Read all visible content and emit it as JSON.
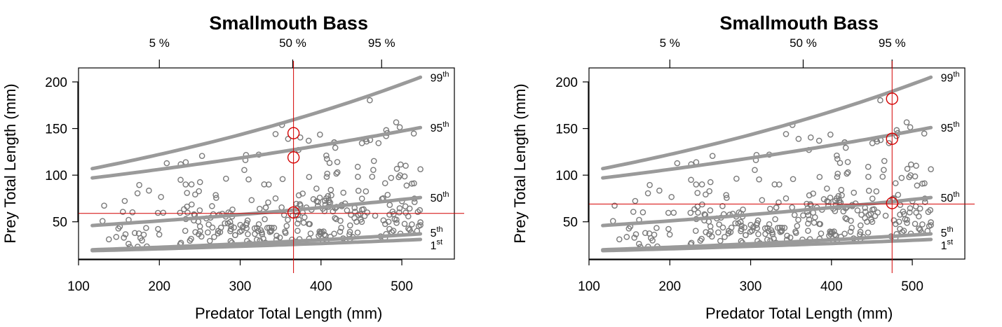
{
  "chart_data": [
    {
      "type": "scatter",
      "title": "Smallmouth Bass",
      "xlabel": "Predator Total Length (mm)",
      "ylabel": "Prey Total Length (mm)",
      "xlim": [
        100,
        565
      ],
      "ylim": [
        10,
        215
      ],
      "xticks": [
        100,
        200,
        300,
        400,
        500
      ],
      "yticks": [
        50,
        100,
        150,
        200
      ],
      "percentile_ticks": [
        {
          "label": "5 %",
          "x": 200
        },
        {
          "label": "50 %",
          "x": 365
        },
        {
          "label": "95 %",
          "x": 475
        }
      ],
      "curves": [
        {
          "name": "99th",
          "num": "99",
          "sup": "th",
          "x_start": 117,
          "y_start": 107,
          "x_end": 523,
          "y_end": 205
        },
        {
          "name": "95th",
          "num": "95",
          "sup": "th",
          "x_start": 117,
          "y_start": 97,
          "x_end": 523,
          "y_end": 151
        },
        {
          "name": "50th",
          "num": "50",
          "sup": "th",
          "x_start": 117,
          "y_start": 46,
          "x_end": 523,
          "y_end": 76
        },
        {
          "name": "5th",
          "num": "5",
          "sup": "th",
          "x_start": 117,
          "y_start": 20,
          "x_end": 523,
          "y_end": 37
        },
        {
          "name": "1st",
          "num": "1",
          "sup": "st",
          "x_start": 117,
          "y_start": 19,
          "x_end": 523,
          "y_end": 31
        }
      ],
      "crosshair": {
        "x": 366,
        "y": 59
      },
      "markers": [
        {
          "x": 366,
          "y": 145
        },
        {
          "x": 366,
          "y": 119
        },
        {
          "x": 366,
          "y": 60
        }
      ],
      "points_seed": 7
    },
    {
      "type": "scatter",
      "title": "Smallmouth Bass",
      "xlabel": "Predator Total Length (mm)",
      "ylabel": "Prey Total Length (mm)",
      "xlim": [
        100,
        565
      ],
      "ylim": [
        10,
        215
      ],
      "xticks": [
        100,
        200,
        300,
        400,
        500
      ],
      "yticks": [
        50,
        100,
        150,
        200
      ],
      "percentile_ticks": [
        {
          "label": "5 %",
          "x": 200
        },
        {
          "label": "50 %",
          "x": 365
        },
        {
          "label": "95 %",
          "x": 475
        }
      ],
      "curves": [
        {
          "name": "99th",
          "num": "99",
          "sup": "th",
          "x_start": 117,
          "y_start": 107,
          "x_end": 523,
          "y_end": 205
        },
        {
          "name": "95th",
          "num": "95",
          "sup": "th",
          "x_start": 117,
          "y_start": 97,
          "x_end": 523,
          "y_end": 151
        },
        {
          "name": "50th",
          "num": "50",
          "sup": "th",
          "x_start": 117,
          "y_start": 46,
          "x_end": 523,
          "y_end": 76
        },
        {
          "name": "5th",
          "num": "5",
          "sup": "th",
          "x_start": 117,
          "y_start": 20,
          "x_end": 523,
          "y_end": 37
        },
        {
          "name": "1st",
          "num": "1",
          "sup": "st",
          "x_start": 117,
          "y_start": 19,
          "x_end": 523,
          "y_end": 31
        }
      ],
      "crosshair": {
        "x": 475,
        "y": 69
      },
      "markers": [
        {
          "x": 475,
          "y": 182
        },
        {
          "x": 475,
          "y": 139
        },
        {
          "x": 475,
          "y": 70
        }
      ],
      "points_seed": 7
    }
  ],
  "colors": {
    "curve": "#9a9a9a",
    "point": "#7a7a7a",
    "crosshair": "#d40000",
    "axis": "#000000"
  }
}
